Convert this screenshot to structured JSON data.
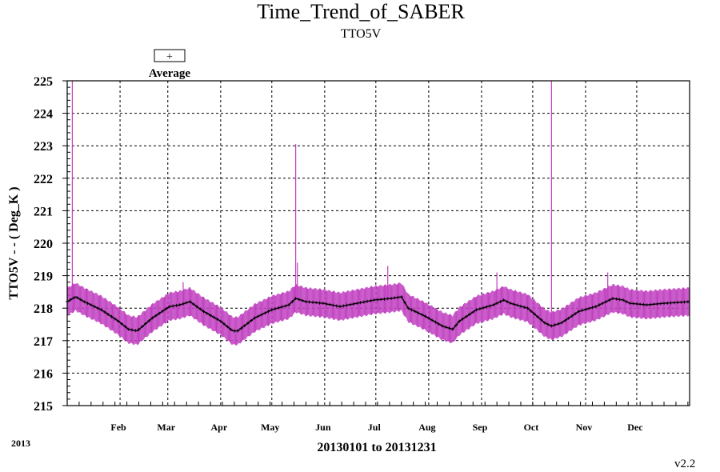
{
  "chart_data": {
    "type": "line",
    "title": "Time_Trend_of_SABER",
    "subtitle": "TTO5V",
    "ylabel": "TTO5V  - - ( Deg_K )",
    "xlabel": "20130101 to 20131231",
    "year_label": "2013",
    "version": "v2.2",
    "legend": {
      "symbol": "+",
      "label": "Average",
      "position": "top-left"
    },
    "ylim": [
      215,
      225
    ],
    "xlim": [
      0,
      365
    ],
    "grid": true,
    "y_ticks": [
      "215",
      "216",
      "217",
      "218",
      "219",
      "220",
      "221",
      "222",
      "223",
      "224",
      "225"
    ],
    "x_ticks": [
      {
        "day": 31,
        "label": "Feb"
      },
      {
        "day": 59,
        "label": "Mar"
      },
      {
        "day": 90,
        "label": "Apr"
      },
      {
        "day": 120,
        "label": "May"
      },
      {
        "day": 151,
        "label": "Jun"
      },
      {
        "day": 181,
        "label": "Jul"
      },
      {
        "day": 212,
        "label": "Aug"
      },
      {
        "day": 243,
        "label": "Sep"
      },
      {
        "day": 273,
        "label": "Oct"
      },
      {
        "day": 304,
        "label": "Nov"
      },
      {
        "day": 334,
        "label": "Dec"
      }
    ],
    "colors": {
      "range": "#c040c0",
      "average": "#000000",
      "grid": "#000000"
    },
    "series": [
      {
        "name": "Average",
        "x": [
          0,
          5,
          10,
          20,
          30,
          36,
          41,
          50,
          60,
          66,
          72,
          80,
          90,
          97,
          100,
          110,
          120,
          130,
          134,
          140,
          150,
          160,
          170,
          180,
          190,
          196,
          200,
          210,
          220,
          226,
          230,
          240,
          250,
          256,
          260,
          270,
          280,
          284,
          290,
          300,
          310,
          320,
          326,
          330,
          340,
          350,
          365
        ],
        "values": [
          218.2,
          218.35,
          218.2,
          217.95,
          217.6,
          217.35,
          217.3,
          217.7,
          218.05,
          218.1,
          218.2,
          217.9,
          217.6,
          217.3,
          217.3,
          217.7,
          217.95,
          218.1,
          218.3,
          218.2,
          218.15,
          218.05,
          218.15,
          218.25,
          218.3,
          218.35,
          218.0,
          217.75,
          217.45,
          217.35,
          217.6,
          217.95,
          218.1,
          218.25,
          218.15,
          218.0,
          217.55,
          217.45,
          217.55,
          217.9,
          218.05,
          218.3,
          218.25,
          218.15,
          218.1,
          218.15,
          218.2
        ]
      }
    ],
    "range_halfwidth": [
      0.4,
      0.45
    ],
    "spikes": [
      {
        "x": 3,
        "value": 225
      },
      {
        "x": 134,
        "value": 223.05
      },
      {
        "x": 135,
        "value": 219.4
      },
      {
        "x": 188,
        "value": 219.3
      },
      {
        "x": 252,
        "value": 219.1
      },
      {
        "x": 284,
        "value": 225
      },
      {
        "x": 317,
        "value": 219.1
      },
      {
        "x": 68,
        "value": 218.8
      }
    ]
  }
}
